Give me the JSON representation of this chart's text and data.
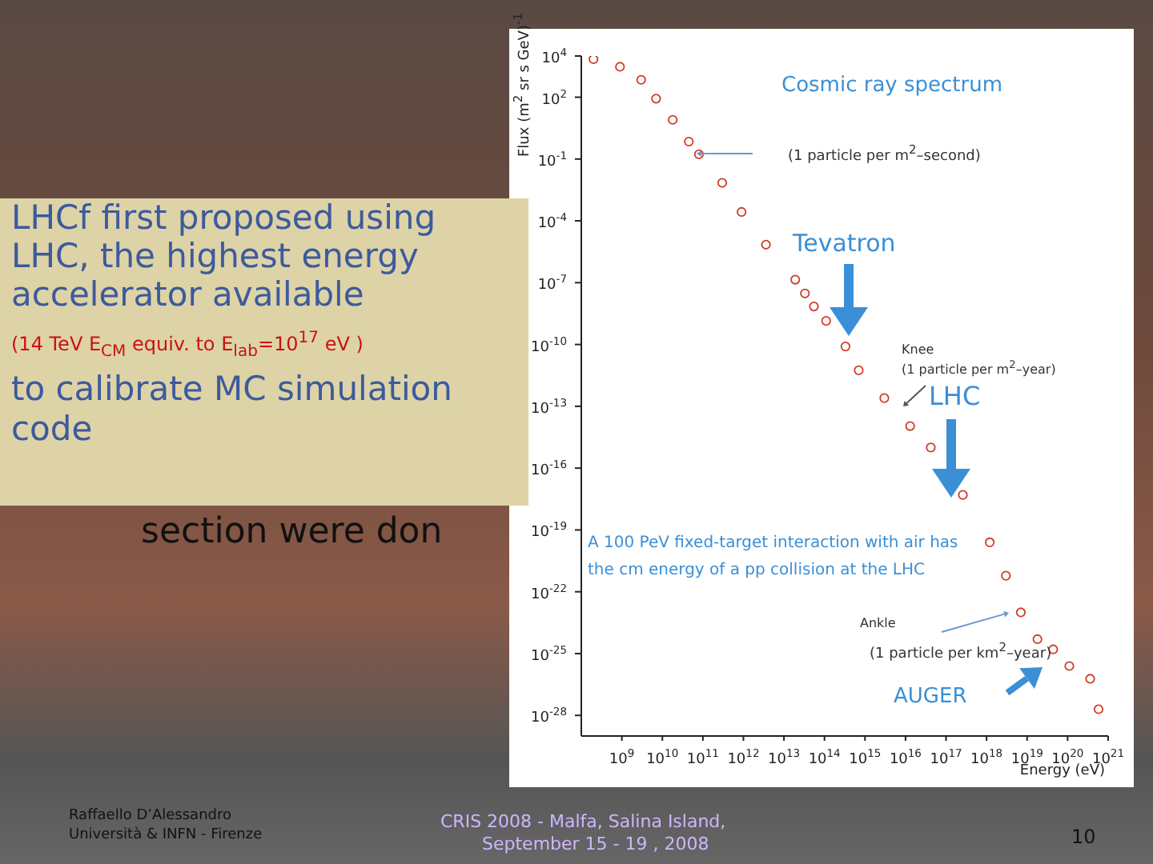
{
  "chart_data": {
    "type": "scatter",
    "xlabel": "Energy (eV)",
    "ylabel": "Flux (m$^{2}$ sr s GeV)$^{-1}$",
    "log": "xy",
    "xlim": [
      100000000.0,
      1e+21
    ],
    "ylim": [
      1e-29,
      10000.0
    ],
    "xticks": [
      {
        "value": 1000000000.0,
        "label": "10$^{9}$"
      },
      {
        "value": 10000000000.0,
        "label": "10$^{10}$"
      },
      {
        "value": 100000000000.0,
        "label": "10$^{11}$"
      },
      {
        "value": 1000000000000.0,
        "label": "10$^{12}$"
      },
      {
        "value": 10000000000000.0,
        "label": "10$^{13}$"
      },
      {
        "value": 100000000000000.0,
        "label": "10$^{14}$"
      },
      {
        "value": 1000000000000000.0,
        "label": "10$^{15}$"
      },
      {
        "value": 1e+16,
        "label": "10$^{16}$"
      },
      {
        "value": 1e+17,
        "label": "10$^{17}$"
      },
      {
        "value": 1e+18,
        "label": "10$^{18}$"
      },
      {
        "value": 1e+19,
        "label": "10$^{19}$"
      },
      {
        "value": 1e+20,
        "label": "10$^{20}$"
      },
      {
        "value": 1e+21,
        "label": "10$^{21}$"
      }
    ],
    "yticks": [
      {
        "value": 10000.0,
        "label": "10$^{4}$"
      },
      {
        "value": 100.0,
        "label": "10$^{2}$"
      },
      {
        "value": 0.1,
        "label": "10$^{-1}$"
      },
      {
        "value": 0.0001,
        "label": "10$^{-4}$"
      },
      {
        "value": 1e-07,
        "label": "10$^{-7}$"
      },
      {
        "value": 1e-10,
        "label": "10$^{-10}$"
      },
      {
        "value": 1e-13,
        "label": "10$^{-13}$"
      },
      {
        "value": 1e-16,
        "label": "10$^{-16}$"
      },
      {
        "value": 1e-19,
        "label": "10$^{-19}$"
      },
      {
        "value": 1e-22,
        "label": "10$^{-22}$"
      },
      {
        "value": 1e-25,
        "label": "10$^{-25}$"
      },
      {
        "value": 1e-28,
        "label": "10$^{-28}$"
      }
    ],
    "grid": false,
    "legend": false,
    "marker": "circle",
    "x": [
      200000000.0,
      900000000.0,
      3000000000.0,
      7000000000.0,
      18000000000.0,
      45000000000.0,
      80000000000.0,
      300000000000.0,
      900000000000.0,
      3600000000000.0,
      19000000000000.0,
      33000000000000.0,
      55000000000000.0,
      110000000000000.0,
      330000000000000.0,
      700000000000000.0,
      3000000000000000.0,
      1.3e+16,
      4.2e+16,
      2.6e+17,
      1.2e+18,
      3e+18,
      7e+18,
      1.8e+19,
      4.4e+19,
      1.1e+20,
      3.6e+20,
      5.8e+20
    ],
    "series": [
      {
        "color": "#d03a2a",
        "values": [
          7000.0,
          3000.0,
          700.0,
          85,
          8,
          0.7,
          0.17,
          0.007,
          0.00027,
          7e-06,
          1.4e-07,
          3e-08,
          7e-09,
          1.4e-09,
          8e-11,
          5.6e-12,
          2.5e-13,
          1.1e-14,
          1e-15,
          5e-18,
          2.5e-20,
          6e-22,
          1e-23,
          5e-25,
          1.6e-25,
          2.5e-26,
          6e-27,
          2e-28
        ]
      }
    ],
    "annotations": [
      "Cosmic ray spectrum",
      "(1 particle per m$^{2}$–second)",
      "Tevatron",
      "Knee",
      "(1 particle per m$^{2}$–year)",
      "LHC",
      "A 100 PeV fixed-target interaction with air has the cm energy of a pp collision at the LHC",
      "Ankle",
      "(1 particle per km$^{2}$–year)",
      "AUGER",
      "LHCf first proposed using LHC, the highest energy accelerator available",
      "(14 TeV E$_{CM}$ equiv. to E$_{lab}$=10$^{17}$ eV )",
      "to calibrate MC simulation code",
      "section were don",
      "Raffaello D’Alessandro",
      "Università & INFN - Firenze",
      "CRIS 2008 -   Malfa, Salina Island,",
      "September 15 - 19 , 2008",
      "10"
    ]
  }
}
